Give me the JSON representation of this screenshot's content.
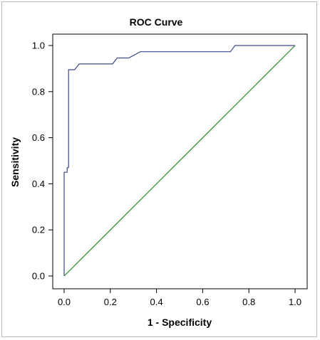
{
  "chart_data": {
    "type": "line",
    "title": "ROC Curve",
    "xlabel": "1 - Specificity",
    "ylabel": "Sensitivity",
    "xlim": [
      0,
      1
    ],
    "ylim": [
      0,
      1
    ],
    "xticks": [
      "0.0",
      "0.2",
      "0.4",
      "0.6",
      "0.8",
      "1.0"
    ],
    "yticks": [
      "0.0",
      "0.2",
      "0.4",
      "0.6",
      "0.8",
      "1.0"
    ],
    "grid": false,
    "legend": "none",
    "series": [
      {
        "color": "#3b4a8c",
        "points": [
          [
            0.0,
            0.0
          ],
          [
            0.0,
            0.45
          ],
          [
            0.013,
            0.45
          ],
          [
            0.013,
            0.47
          ],
          [
            0.019,
            0.47
          ],
          [
            0.019,
            0.895
          ],
          [
            0.045,
            0.895
          ],
          [
            0.065,
            0.92
          ],
          [
            0.21,
            0.92
          ],
          [
            0.23,
            0.946
          ],
          [
            0.28,
            0.946
          ],
          [
            0.33,
            0.973
          ],
          [
            0.72,
            0.973
          ],
          [
            0.74,
            1.0
          ],
          [
            1.0,
            1.0
          ]
        ]
      },
      {
        "color": "#2e8b2e",
        "points": [
          [
            0.0,
            0.0
          ],
          [
            1.0,
            1.0
          ]
        ]
      }
    ]
  }
}
